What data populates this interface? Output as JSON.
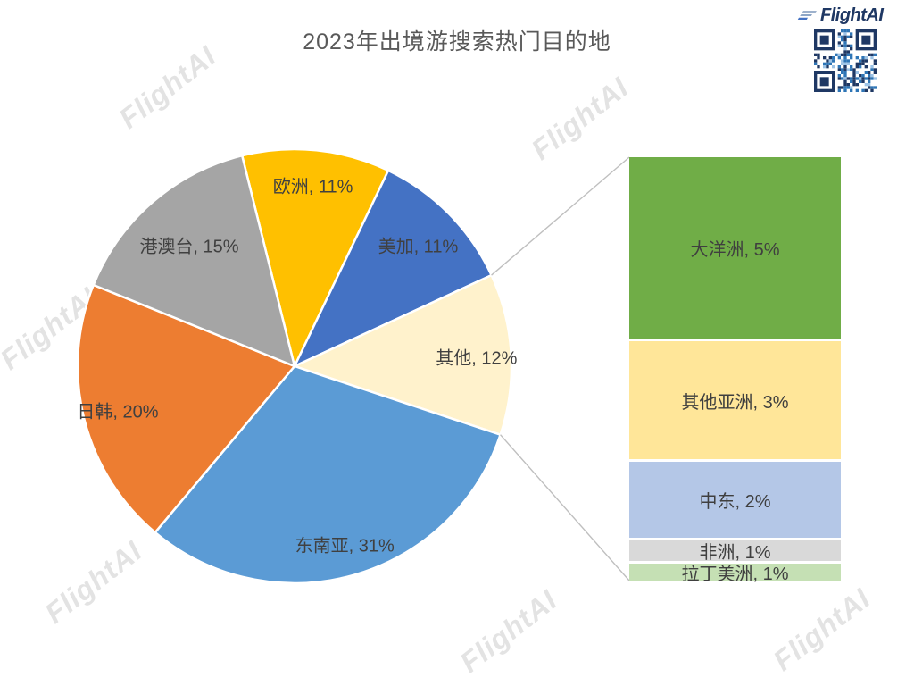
{
  "title": "2023年出境游搜索热门目的地",
  "brand": {
    "logo_text": "FlightAI",
    "logo_color": "#1f3864",
    "watermark_text": "FlightAI"
  },
  "chart_data": {
    "type": "bar-of-pie",
    "title": "2023年出境游搜索热门目的地",
    "label_format": "{label}, {value}%",
    "pie": {
      "start_angle_deg": -14,
      "unit": "%",
      "slices": [
        {
          "label": "欧洲",
          "value": 11,
          "color": "#FFC000"
        },
        {
          "label": "美加",
          "value": 11,
          "color": "#4472C4"
        },
        {
          "label": "其他",
          "value": 12,
          "color": "#FFF2CC"
        },
        {
          "label": "东南亚",
          "value": 31,
          "color": "#5B9BD5"
        },
        {
          "label": "日韩",
          "value": 20,
          "color": "#ED7D31"
        },
        {
          "label": "港澳台",
          "value": 15,
          "color": "#A5A5A5"
        }
      ]
    },
    "bar": {
      "breakdown_of": "其他",
      "unit": "%",
      "segments": [
        {
          "label": "大洋洲",
          "value": 5,
          "color": "#70AD47"
        },
        {
          "label": "其他亚洲",
          "value": 3,
          "color": "#FFE699"
        },
        {
          "label": "中东",
          "value": 2,
          "color": "#B4C7E7"
        },
        {
          "label": "非洲",
          "value": 1,
          "color": "#D9D9D9"
        },
        {
          "label": "拉丁美洲",
          "value": 1,
          "color": "#C5E0B4"
        }
      ]
    },
    "legend": "none",
    "grid": false
  }
}
